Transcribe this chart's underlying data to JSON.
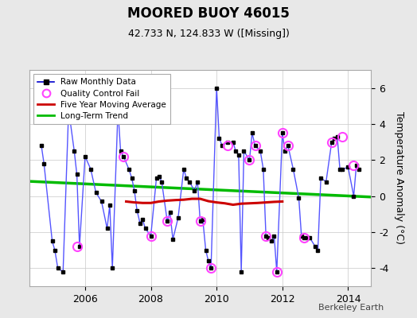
{
  "title": "MOORED BUOY 46015",
  "subtitle": "42.733 N, 124.833 W ([Missing])",
  "ylabel": "Temperature Anomaly (°C)",
  "attribution": "Berkeley Earth",
  "background_color": "#e8e8e8",
  "plot_bg_color": "#ffffff",
  "ylim": [
    -5.0,
    7.0
  ],
  "yticks": [
    -4,
    -2,
    0,
    2,
    4,
    6
  ],
  "xlim": [
    2004.3,
    2014.7
  ],
  "xticks": [
    2006,
    2008,
    2010,
    2012,
    2014
  ],
  "raw_data_x": [
    2004.67,
    2004.75,
    2005.0,
    2005.08,
    2005.17,
    2005.33,
    2005.5,
    2005.67,
    2005.75,
    2005.83,
    2006.0,
    2006.17,
    2006.33,
    2006.5,
    2006.67,
    2006.75,
    2006.83,
    2007.0,
    2007.08,
    2007.17,
    2007.33,
    2007.42,
    2007.5,
    2007.58,
    2007.67,
    2007.75,
    2007.83,
    2008.0,
    2008.17,
    2008.25,
    2008.33,
    2008.5,
    2008.58,
    2008.67,
    2008.83,
    2009.0,
    2009.08,
    2009.17,
    2009.33,
    2009.42,
    2009.5,
    2009.58,
    2009.67,
    2009.75,
    2009.83,
    2010.0,
    2010.08,
    2010.17,
    2010.33,
    2010.5,
    2010.58,
    2010.67,
    2010.75,
    2010.83,
    2011.0,
    2011.08,
    2011.17,
    2011.33,
    2011.42,
    2011.5,
    2011.58,
    2011.67,
    2011.75,
    2011.83,
    2012.0,
    2012.08,
    2012.17,
    2012.33,
    2012.5,
    2012.58,
    2012.67,
    2012.75,
    2012.83,
    2013.0,
    2013.08,
    2013.17,
    2013.33,
    2013.5,
    2013.58,
    2013.67,
    2013.75,
    2013.83,
    2014.0,
    2014.17,
    2014.25,
    2014.33
  ],
  "raw_data_y": [
    2.8,
    1.8,
    -2.5,
    -3.0,
    -4.0,
    -4.2,
    4.8,
    2.5,
    1.2,
    -2.8,
    2.2,
    1.5,
    0.2,
    -0.3,
    -1.8,
    -0.5,
    -4.0,
    4.8,
    2.5,
    2.2,
    1.5,
    1.0,
    0.3,
    -0.8,
    -1.5,
    -1.3,
    -1.8,
    -2.2,
    1.0,
    1.1,
    0.8,
    -1.4,
    -0.9,
    -2.4,
    -1.2,
    1.5,
    1.0,
    0.8,
    0.3,
    0.8,
    -1.4,
    -1.3,
    -3.0,
    -3.6,
    -4.0,
    6.0,
    3.2,
    2.8,
    3.0,
    3.0,
    2.5,
    2.3,
    -4.2,
    2.5,
    2.0,
    3.5,
    2.8,
    2.5,
    1.5,
    -2.2,
    -2.3,
    -2.5,
    -2.2,
    -4.2,
    3.5,
    2.5,
    2.8,
    1.5,
    -0.1,
    -2.2,
    -2.3,
    -2.3,
    -2.3,
    -2.8,
    -3.0,
    1.0,
    0.8,
    3.0,
    3.2,
    3.3,
    1.5,
    1.5,
    1.6,
    0.0,
    1.7,
    1.5
  ],
  "qc_fail_x": [
    2005.75,
    2007.17,
    2008.0,
    2008.5,
    2009.5,
    2009.83,
    2010.33,
    2011.0,
    2011.17,
    2011.5,
    2011.83,
    2012.0,
    2012.17,
    2012.67,
    2013.5,
    2013.83,
    2014.17
  ],
  "qc_fail_y": [
    -2.8,
    2.2,
    -2.2,
    -1.4,
    -1.4,
    -4.0,
    2.8,
    2.0,
    2.8,
    -2.2,
    -4.2,
    3.5,
    2.8,
    -2.3,
    3.0,
    3.3,
    1.7
  ],
  "moving_avg_x": [
    2007.25,
    2007.5,
    2007.75,
    2008.0,
    2008.25,
    2008.5,
    2008.75,
    2009.0,
    2009.25,
    2009.5,
    2009.75,
    2010.0,
    2010.25,
    2010.5,
    2010.75,
    2011.0,
    2011.25,
    2011.5,
    2011.75,
    2012.0
  ],
  "moving_avg_y": [
    -0.3,
    -0.35,
    -0.38,
    -0.38,
    -0.3,
    -0.25,
    -0.22,
    -0.2,
    -0.15,
    -0.15,
    -0.28,
    -0.35,
    -0.4,
    -0.48,
    -0.42,
    -0.4,
    -0.38,
    -0.35,
    -0.32,
    -0.3
  ],
  "trend_x": [
    2004.3,
    2014.7
  ],
  "trend_y": [
    0.82,
    -0.05
  ],
  "line_color_blue": "#5555ff",
  "marker_color": "#000000",
  "qc_color": "#ff44ff",
  "moving_avg_color": "#cc0000",
  "trend_color": "#00bb00",
  "legend_line_color": "#0000cc"
}
